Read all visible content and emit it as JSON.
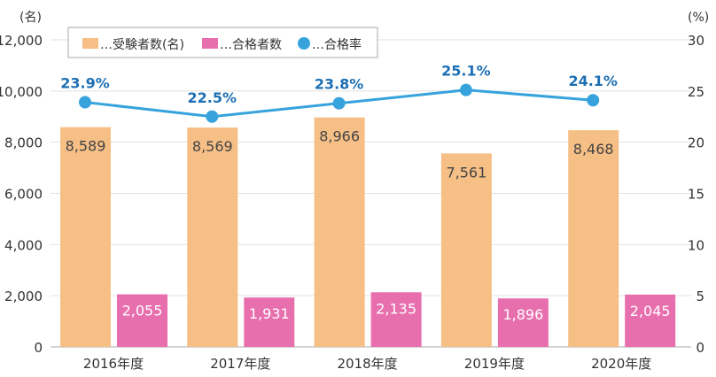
{
  "chart_data": {
    "type": "bar+line",
    "categories": [
      "2016年度",
      "2017年度",
      "2018年度",
      "2019年度",
      "2020年度"
    ],
    "series": [
      {
        "name": "…受験者数(名)",
        "type": "bar",
        "axis": "left",
        "color": "#f5bf86",
        "values": [
          8589,
          8569,
          8966,
          7561,
          8468
        ],
        "labels": [
          "8,589",
          "8,569",
          "8,966",
          "7,561",
          "8,468"
        ]
      },
      {
        "name": "…合格者数",
        "type": "bar",
        "axis": "left",
        "color": "#e86fae",
        "values": [
          2055,
          1931,
          2135,
          1896,
          2045
        ],
        "labels": [
          "2,055",
          "1,931",
          "2,135",
          "1,896",
          "2,045"
        ]
      },
      {
        "name": "…合格率",
        "type": "line",
        "axis": "right",
        "color": "#36a3dc",
        "values": [
          23.9,
          22.5,
          23.8,
          25.1,
          24.1
        ],
        "labels": [
          "23.9%",
          "22.5%",
          "23.8%",
          "25.1%",
          "24.1%"
        ]
      }
    ],
    "left_axis": {
      "unit": "(名)",
      "ylim": [
        0,
        12000
      ],
      "ticks": [
        "0",
        "2,000",
        "4,000",
        "6,000",
        "8,000",
        "10,000",
        "12,000"
      ]
    },
    "right_axis": {
      "unit": "(%)",
      "ylim": [
        0,
        30
      ],
      "ticks": [
        "0",
        "5",
        "10",
        "15",
        "20",
        "25",
        "30"
      ]
    },
    "grid": true,
    "legend": "top-left",
    "line_label_color": "#1d6fb3"
  }
}
